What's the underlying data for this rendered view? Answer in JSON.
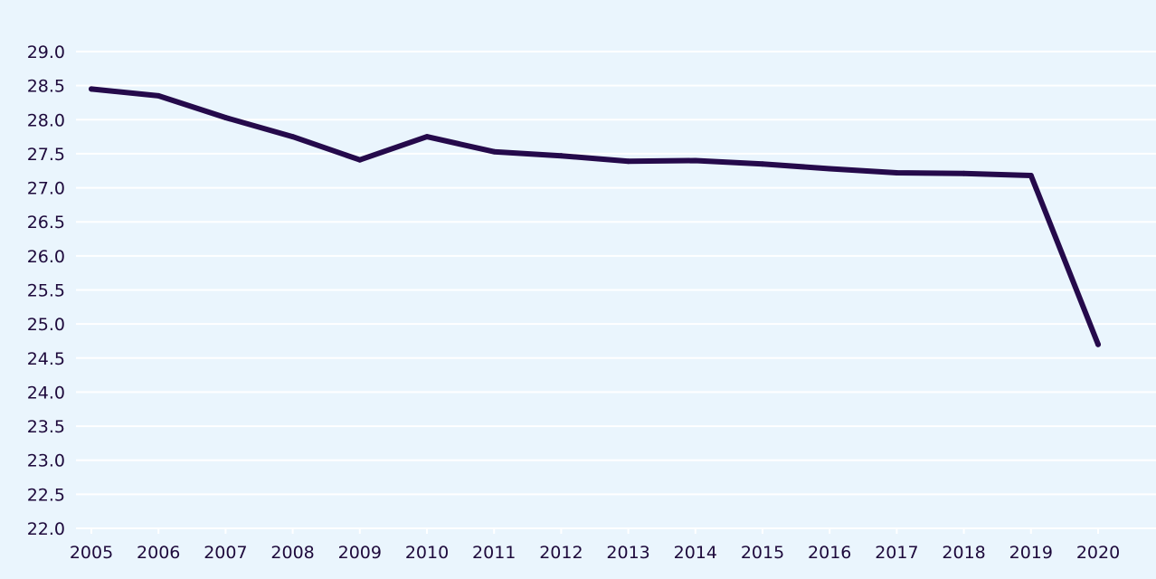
{
  "chart_data": {
    "type": "line",
    "title": "",
    "xlabel": "",
    "ylabel": "",
    "x": [
      "2005",
      "2006",
      "2007",
      "2008",
      "2009",
      "2010",
      "2011",
      "2012",
      "2013",
      "2014",
      "2015",
      "2016",
      "2017",
      "2018",
      "2019",
      "2020"
    ],
    "series": [
      {
        "values": [
          28.45,
          28.35,
          28.03,
          27.75,
          27.41,
          27.75,
          27.53,
          27.47,
          27.39,
          27.4,
          27.35,
          27.28,
          27.22,
          27.21,
          27.18,
          24.7
        ],
        "color": "#250a4b"
      }
    ],
    "y_ticks": [
      "22.0",
      "22.5",
      "23.0",
      "23.5",
      "24.0",
      "24.5",
      "25.0",
      "25.5",
      "26.0",
      "26.5",
      "27.0",
      "27.5",
      "28.0",
      "28.5",
      "29.0"
    ],
    "ylim": [
      22.0,
      29.0
    ],
    "grid": true,
    "legend": "none",
    "background": "#eaf5fd",
    "grid_color": "#ffffff",
    "text_color": "#1e0a3c"
  }
}
